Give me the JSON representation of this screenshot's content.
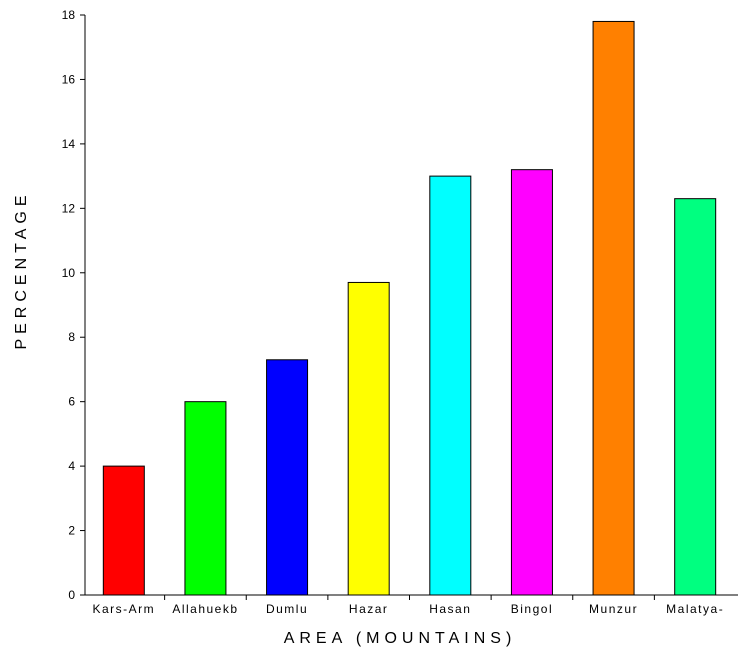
{
  "chart_data": {
    "type": "bar",
    "title": "",
    "xlabel": "AREA (MOUNTAINS)",
    "ylabel": "PERCENTAGE",
    "categories": [
      "Kars-Arm",
      "Allahuekb",
      "Dumlu",
      "Hazar",
      "Hasan",
      "Bingol",
      "Munzur",
      "Malatya-"
    ],
    "values": [
      4.0,
      6.0,
      7.3,
      9.7,
      13.0,
      13.2,
      17.8,
      12.3
    ],
    "colors": [
      "#ff0000",
      "#00ff00",
      "#0000ff",
      "#ffff00",
      "#00ffff",
      "#ff00ff",
      "#ff8000",
      "#00ff80"
    ],
    "ylim": [
      0,
      18
    ],
    "yticks": [
      0,
      2,
      4,
      6,
      8,
      10,
      12,
      14,
      16,
      18
    ],
    "grid": false,
    "legend": "none"
  }
}
